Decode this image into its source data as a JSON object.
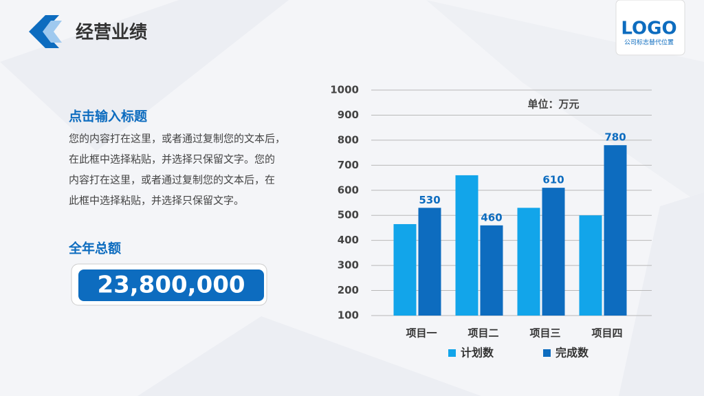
{
  "header": {
    "title": "经营业绩"
  },
  "logo": {
    "text": "LOGO",
    "caption": "公司标志替代位置"
  },
  "intro": {
    "title": "点击输入标题",
    "lines": [
      "您的内容打在这里，或者通过复制您的文本后，",
      "在此框中选择粘贴，并选择只保留文字。您的",
      "内容打在这里，或者通过复制您的文本后，在",
      "此框中选择粘贴，并选择只保留文字。"
    ]
  },
  "total": {
    "label": "全年总额",
    "amount": "23,800,000"
  },
  "chart_data": {
    "type": "bar",
    "annotation": "单位：万元",
    "categories": [
      "项目一",
      "项目二",
      "项目三",
      "项目四"
    ],
    "series": [
      {
        "name": "计划数",
        "color": "#12a5ea",
        "values": [
          465,
          660,
          530,
          500
        ],
        "labels": false
      },
      {
        "name": "完成数",
        "color": "#0d6cbf",
        "values": [
          530,
          460,
          610,
          780
        ],
        "labels": true
      }
    ],
    "ylim": [
      100,
      1000
    ],
    "yticks": [
      100,
      200,
      300,
      400,
      500,
      600,
      700,
      800,
      900,
      1000
    ],
    "grid": true,
    "legend": "bottom"
  }
}
